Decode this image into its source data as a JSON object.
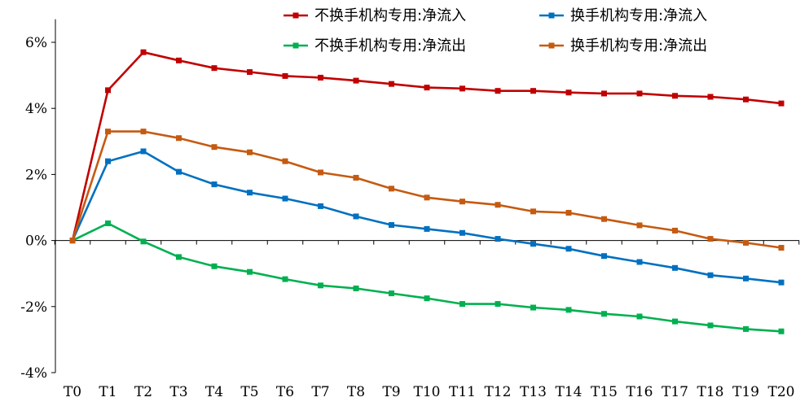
{
  "chart_data": {
    "type": "line",
    "x": [
      "T0",
      "T1",
      "T2",
      "T3",
      "T4",
      "T5",
      "T6",
      "T7",
      "T8",
      "T9",
      "T10",
      "T11",
      "T12",
      "T13",
      "T14",
      "T15",
      "T16",
      "T17",
      "T18",
      "T19",
      "T20"
    ],
    "ylim": [
      -4,
      6.7
    ],
    "yticks": [
      -4,
      -2,
      0,
      2,
      4,
      6
    ],
    "ytick_labels": [
      "-4%",
      "-2%",
      "0%",
      "2%",
      "4%",
      "6%"
    ],
    "grid": false,
    "legend_position": "top-right",
    "series": [
      {
        "name": "不换手机构专用:净流入",
        "color": "#c00000",
        "values": [
          0,
          4.55,
          5.7,
          5.45,
          5.22,
          5.1,
          4.98,
          4.93,
          4.84,
          4.74,
          4.63,
          4.6,
          4.53,
          4.53,
          4.48,
          4.45,
          4.45,
          4.38,
          4.35,
          4.27,
          4.15
        ]
      },
      {
        "name": "换手机构专用:净流入",
        "color": "#0070c0",
        "values": [
          0,
          2.4,
          2.7,
          2.08,
          1.7,
          1.45,
          1.27,
          1.04,
          0.73,
          0.47,
          0.35,
          0.23,
          0.05,
          -0.1,
          -0.25,
          -0.47,
          -0.65,
          -0.83,
          -1.05,
          -1.15,
          -1.27
        ]
      },
      {
        "name": "不换手机构专用:净流出",
        "color": "#00b050",
        "values": [
          0,
          0.52,
          -0.03,
          -0.5,
          -0.78,
          -0.95,
          -1.17,
          -1.36,
          -1.45,
          -1.6,
          -1.75,
          -1.92,
          -1.92,
          -2.03,
          -2.1,
          -2.22,
          -2.3,
          -2.45,
          -2.57,
          -2.68,
          -2.75
        ]
      },
      {
        "name": "换手机构专用:净流出",
        "color": "#c55a11",
        "values": [
          0,
          3.3,
          3.3,
          3.1,
          2.83,
          2.67,
          2.4,
          2.06,
          1.9,
          1.57,
          1.3,
          1.18,
          1.08,
          0.88,
          0.84,
          0.65,
          0.46,
          0.3,
          0.05,
          -0.07,
          -0.22
        ]
      }
    ]
  }
}
